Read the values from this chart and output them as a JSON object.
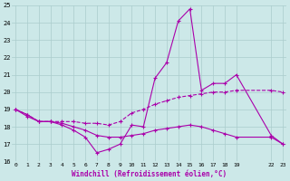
{
  "background_color": "#cce8e8",
  "grid_color": "#aacccc",
  "line_color": "#aa00aa",
  "ylim": [
    16,
    25
  ],
  "yticks": [
    16,
    17,
    18,
    19,
    20,
    21,
    22,
    23,
    24,
    25
  ],
  "xticks": [
    0,
    1,
    2,
    3,
    4,
    5,
    6,
    7,
    8,
    9,
    10,
    11,
    12,
    13,
    14,
    15,
    16,
    17,
    18,
    19,
    22,
    23
  ],
  "xlim": [
    -0.3,
    23.3
  ],
  "xlabel": "Windchill (Refroidissement éolien,°C)",
  "line1_x": [
    0,
    1,
    2,
    3,
    4,
    5,
    6,
    7,
    8,
    9,
    10,
    11,
    12,
    13,
    14,
    15,
    16,
    17,
    18,
    19,
    22,
    23
  ],
  "line1_y": [
    19.0,
    18.7,
    18.3,
    18.3,
    18.1,
    17.8,
    17.4,
    16.5,
    16.7,
    17.0,
    18.1,
    18.0,
    20.8,
    21.7,
    24.1,
    24.8,
    20.1,
    20.5,
    20.5,
    21.0,
    17.5,
    17.0
  ],
  "line2_x": [
    0,
    1,
    2,
    3,
    4,
    5,
    6,
    7,
    8,
    9,
    10,
    11,
    12,
    13,
    14,
    15,
    16,
    17,
    18,
    19,
    22,
    23
  ],
  "line2_y": [
    19.0,
    18.7,
    18.3,
    18.3,
    18.3,
    18.3,
    18.2,
    18.2,
    18.1,
    18.3,
    18.8,
    19.0,
    19.3,
    19.5,
    19.7,
    19.8,
    19.9,
    20.0,
    20.0,
    20.1,
    20.1,
    20.0
  ],
  "line3_x": [
    0,
    1,
    2,
    3,
    4,
    5,
    6,
    7,
    8,
    9,
    10,
    11,
    12,
    13,
    14,
    15,
    16,
    17,
    18,
    19,
    22,
    23
  ],
  "line3_y": [
    19.0,
    18.6,
    18.3,
    18.3,
    18.2,
    18.0,
    17.8,
    17.5,
    17.4,
    17.4,
    17.5,
    17.6,
    17.8,
    17.9,
    18.0,
    18.1,
    18.0,
    17.8,
    17.6,
    17.4,
    17.4,
    17.0
  ]
}
